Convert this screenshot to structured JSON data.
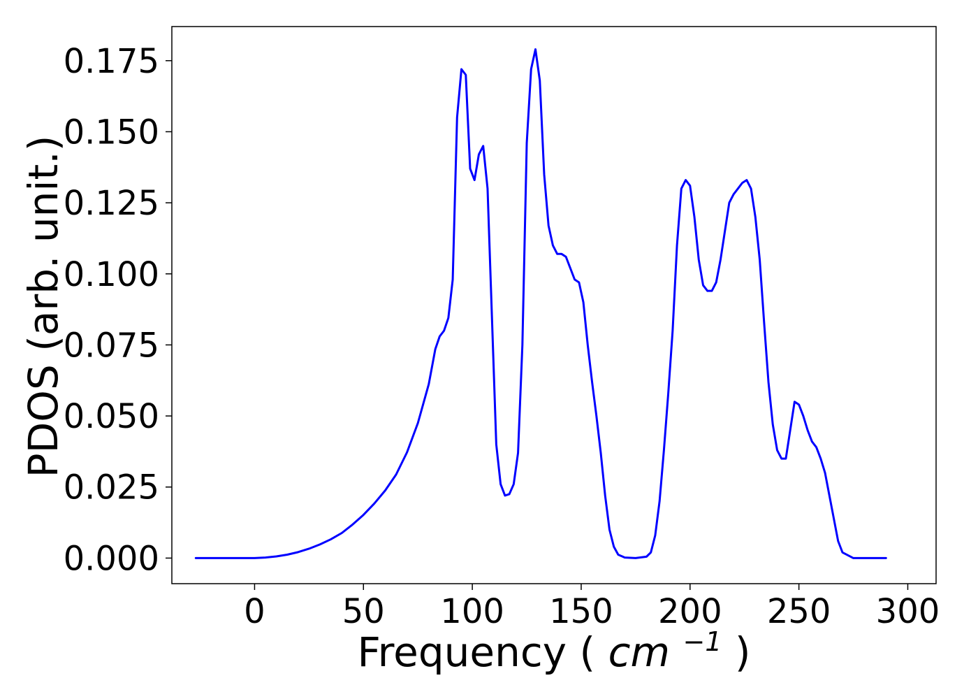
{
  "chart_data": {
    "type": "line",
    "title": "",
    "xlabel": "Frequency",
    "xlabel_unit": {
      "base": "cm",
      "exponent": "−1"
    },
    "ylabel": "PDOS (arb. unit.)",
    "xlim": [
      -38,
      313
    ],
    "ylim": [
      -0.009,
      0.187
    ],
    "x_ticks": [
      0,
      50,
      100,
      150,
      200,
      250,
      300
    ],
    "y_ticks": [
      0.0,
      0.025,
      0.05,
      0.075,
      0.1,
      0.125,
      0.15,
      0.175
    ],
    "x_tick_labels": [
      "0",
      "50",
      "100",
      "150",
      "200",
      "250",
      "300"
    ],
    "y_tick_labels": [
      "0.000",
      "0.025",
      "0.050",
      "0.075",
      "0.100",
      "0.125",
      "0.150",
      "0.175"
    ],
    "grid": false,
    "series": [
      {
        "color": "#0000ff",
        "x": [
          -27,
          0,
          5,
          10,
          15,
          20,
          25,
          30,
          35,
          40,
          45,
          50,
          55,
          60,
          65,
          70,
          75,
          80,
          83,
          85,
          87,
          89,
          91,
          93,
          95,
          97,
          99,
          101,
          103,
          105,
          107,
          109,
          111,
          113,
          115,
          117,
          119,
          121,
          123,
          125,
          127,
          129,
          131,
          133,
          135,
          137,
          139,
          141,
          143,
          145,
          147,
          149,
          151,
          153,
          155,
          157,
          159,
          161,
          163,
          165,
          167,
          170,
          175,
          180,
          182,
          184,
          186,
          188,
          190,
          192,
          194,
          196,
          198,
          200,
          202,
          204,
          206,
          208,
          210,
          212,
          214,
          216,
          218,
          220,
          222,
          224,
          226,
          228,
          230,
          232,
          234,
          236,
          238,
          240,
          242,
          244,
          246,
          248,
          250,
          252,
          254,
          256,
          258,
          260,
          262,
          264,
          266,
          268,
          270,
          275,
          290
        ],
        "y": [
          0.0,
          0.0,
          0.0002,
          0.0006,
          0.0012,
          0.0021,
          0.0033,
          0.0048,
          0.0066,
          0.0088,
          0.0118,
          0.0152,
          0.0192,
          0.0238,
          0.0294,
          0.0372,
          0.0475,
          0.0612,
          0.0735,
          0.078,
          0.08,
          0.0845,
          0.098,
          0.155,
          0.172,
          0.17,
          0.137,
          0.133,
          0.142,
          0.145,
          0.13,
          0.085,
          0.04,
          0.026,
          0.022,
          0.0225,
          0.026,
          0.037,
          0.075,
          0.146,
          0.172,
          0.179,
          0.168,
          0.135,
          0.117,
          0.11,
          0.107,
          0.107,
          0.106,
          0.102,
          0.098,
          0.097,
          0.09,
          0.075,
          0.062,
          0.05,
          0.037,
          0.022,
          0.01,
          0.004,
          0.0012,
          0.0002,
          0.0,
          0.0005,
          0.002,
          0.008,
          0.02,
          0.038,
          0.058,
          0.08,
          0.11,
          0.13,
          0.133,
          0.131,
          0.12,
          0.105,
          0.096,
          0.094,
          0.094,
          0.097,
          0.105,
          0.115,
          0.125,
          0.128,
          0.13,
          0.132,
          0.133,
          0.13,
          0.12,
          0.105,
          0.083,
          0.062,
          0.047,
          0.038,
          0.035,
          0.035,
          0.045,
          0.055,
          0.054,
          0.05,
          0.045,
          0.041,
          0.039,
          0.035,
          0.03,
          0.022,
          0.014,
          0.006,
          0.002,
          0.0,
          0.0
        ]
      }
    ]
  }
}
